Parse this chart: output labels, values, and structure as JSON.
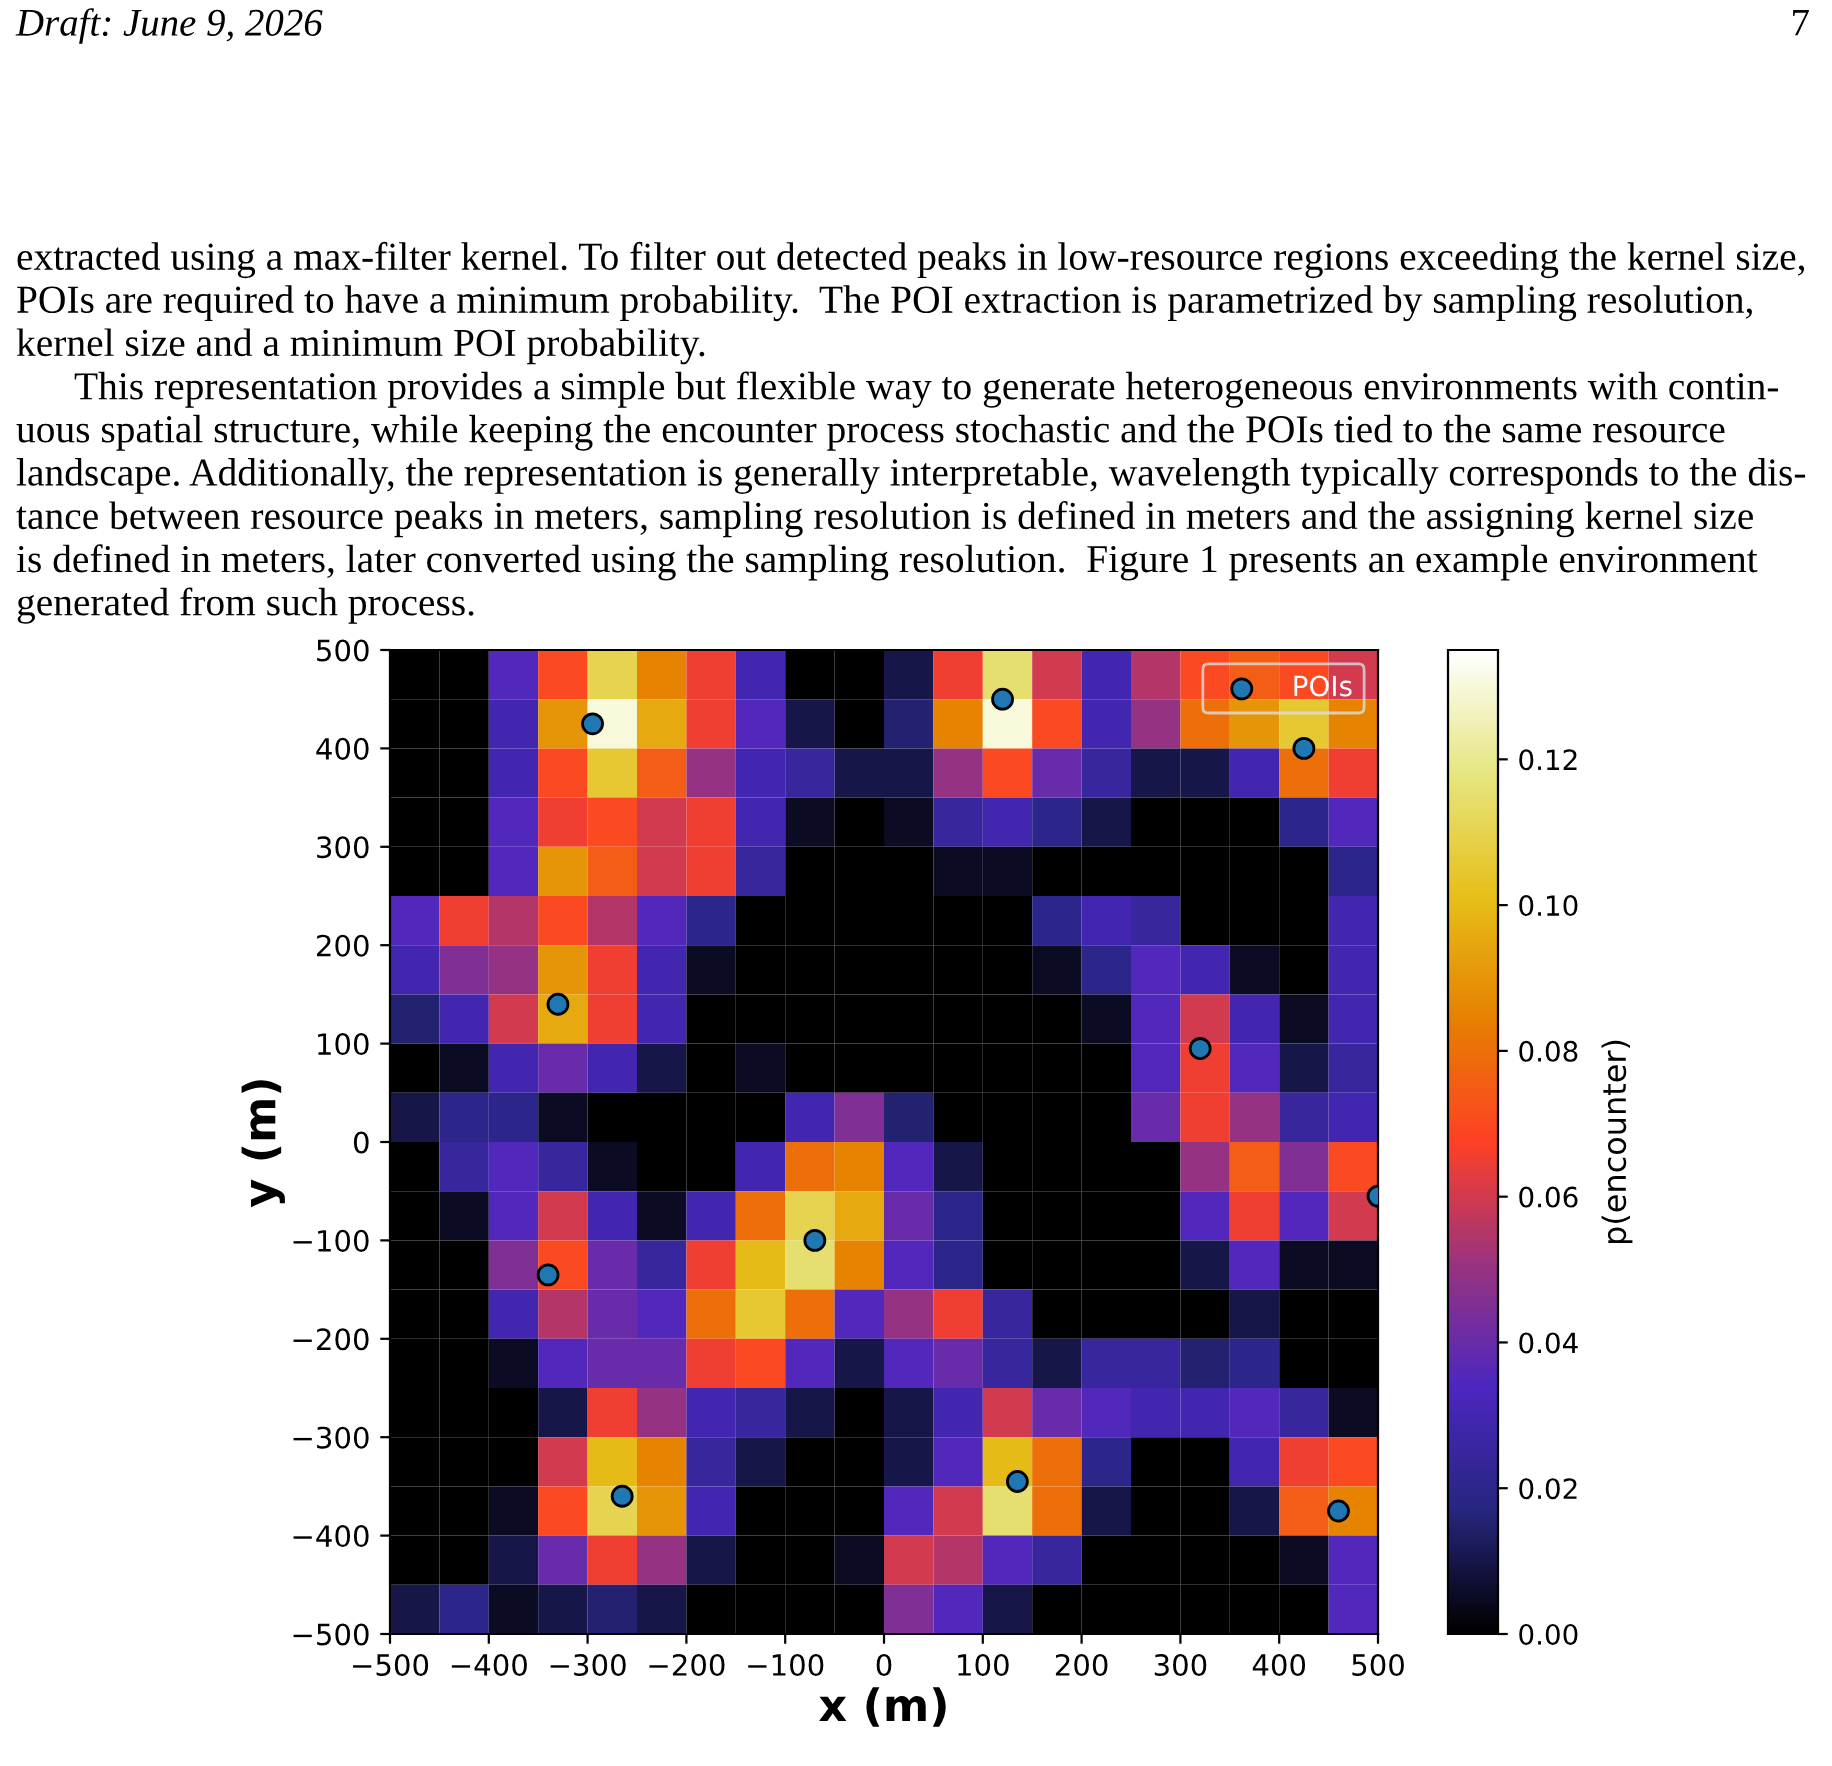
{
  "chart_data": {
    "type": "heatmap",
    "annotations": [
      "Draft: June 9, 2026",
      "7",
      "extracted using a max-filter kernel. To filter out detected peaks in low-resource regions exceeding the kernel size,\nPOIs are required to have a minimum probability.  The POI extraction is parametrized by sampling resolution,\nkernel size and a minimum POI probability.",
      "This representation provides a simple but flexible way to generate heterogeneous environments with contin-\nuous spatial structure, while keeping the encounter process stochastic and the POIs tied to the same resource\nlandscape. Additionally, the representation is generally interpretable, wavelength typically corresponds to the dis-\ntance between resource peaks in meters, sampling resolution is defined in meters and the assigning kernel size\nis defined in meters, later converted using the sampling resolution.  Figure 1 presents an example environment\ngenerated from such process."
    ],
    "xlabel": "x (m)",
    "ylabel": "y (m)",
    "clabel": "p(encounter)",
    "xlim": [
      -500,
      500
    ],
    "ylim": [
      -500,
      500
    ],
    "xticks": [
      {
        "value": -500,
        "label": "−500"
      },
      {
        "value": -400,
        "label": "−400"
      },
      {
        "value": -300,
        "label": "−300"
      },
      {
        "value": -200,
        "label": "−200"
      },
      {
        "value": -100,
        "label": "−100"
      },
      0,
      100,
      200,
      300,
      400,
      500
    ],
    "yticks": [
      {
        "value": -500,
        "label": "−500"
      },
      {
        "value": -400,
        "label": "−400"
      },
      {
        "value": -300,
        "label": "−300"
      },
      {
        "value": -200,
        "label": "−200"
      },
      {
        "value": -100,
        "label": "−100"
      },
      0,
      100,
      200,
      300,
      400,
      500
    ],
    "clim": [
      0,
      0.135
    ],
    "cticks": [
      {
        "value": 0,
        "label": "0.00"
      },
      0.02,
      0.04,
      0.06,
      0.08,
      {
        "value": 0.1,
        "label": "0.10"
      },
      0.12
    ],
    "cells": [
      [
        0,
        0,
        0.035,
        0.07,
        0.11,
        0.085,
        0.065,
        0.03,
        0,
        0,
        0.01,
        0.065,
        0.115,
        0.06,
        0.03,
        0.055,
        0.07,
        0.075,
        0.07,
        0.06
      ],
      [
        0,
        0,
        0.03,
        0.09,
        0.13,
        0.095,
        0.065,
        0.035,
        0.01,
        0,
        0.015,
        0.085,
        0.13,
        0.07,
        0.03,
        0.05,
        0.08,
        0.09,
        0.105,
        0.085
      ],
      [
        0,
        0,
        0.03,
        0.07,
        0.105,
        0.075,
        0.05,
        0.03,
        0.025,
        0.01,
        0.01,
        0.05,
        0.07,
        0.04,
        0.025,
        0.01,
        0.01,
        0.03,
        0.08,
        0.065
      ],
      [
        0,
        0,
        0.035,
        0.065,
        0.07,
        0.06,
        0.065,
        0.03,
        0.005,
        0,
        0.005,
        0.025,
        0.03,
        0.02,
        0.01,
        0,
        0,
        0,
        0.02,
        0.035
      ],
      [
        0,
        0,
        0.035,
        0.09,
        0.075,
        0.06,
        0.065,
        0.025,
        0,
        0,
        0,
        0.005,
        0.005,
        0,
        0,
        0,
        0,
        0,
        0,
        0.02
      ],
      [
        0.035,
        0.065,
        0.055,
        0.07,
        0.055,
        0.035,
        0.02,
        0,
        0,
        0,
        0,
        0,
        0,
        0.02,
        0.03,
        0.025,
        0,
        0,
        0,
        0.03
      ],
      [
        0.03,
        0.045,
        0.05,
        0.09,
        0.065,
        0.03,
        0.005,
        0,
        0,
        0,
        0,
        0,
        0,
        0.005,
        0.02,
        0.035,
        0.03,
        0.005,
        0,
        0.03
      ],
      [
        0.015,
        0.03,
        0.06,
        0.095,
        0.065,
        0.03,
        0,
        0,
        0,
        0,
        0,
        0,
        0,
        0,
        0.005,
        0.035,
        0.06,
        0.03,
        0.005,
        0.03
      ],
      [
        0,
        0.005,
        0.03,
        0.04,
        0.03,
        0.01,
        0,
        0.005,
        0,
        0,
        0,
        0,
        0,
        0,
        0,
        0.035,
        0.065,
        0.035,
        0.01,
        0.025
      ],
      [
        0.01,
        0.02,
        0.02,
        0.005,
        0,
        0,
        0,
        0,
        0.03,
        0.045,
        0.015,
        0,
        0,
        0,
        0,
        0.04,
        0.065,
        0.05,
        0.025,
        0.03
      ],
      [
        0,
        0.025,
        0.035,
        0.025,
        0.005,
        0,
        0,
        0.03,
        0.08,
        0.085,
        0.035,
        0.01,
        0,
        0,
        0,
        0,
        0.05,
        0.075,
        0.045,
        0.07
      ],
      [
        0,
        0.005,
        0.035,
        0.06,
        0.03,
        0.005,
        0.03,
        0.08,
        0.11,
        0.095,
        0.04,
        0.02,
        0,
        0,
        0,
        0,
        0.035,
        0.065,
        0.035,
        0.06
      ],
      [
        0,
        0,
        0.045,
        0.07,
        0.04,
        0.025,
        0.065,
        0.1,
        0.115,
        0.085,
        0.035,
        0.02,
        0,
        0,
        0,
        0,
        0.01,
        0.035,
        0.005,
        0.005
      ],
      [
        0,
        0,
        0.03,
        0.055,
        0.04,
        0.035,
        0.08,
        0.105,
        0.08,
        0.035,
        0.05,
        0.065,
        0.025,
        0,
        0,
        0,
        0,
        0.01,
        0,
        0
      ],
      [
        0,
        0,
        0.005,
        0.035,
        0.04,
        0.04,
        0.065,
        0.07,
        0.035,
        0.01,
        0.035,
        0.04,
        0.025,
        0.01,
        0.025,
        0.025,
        0.015,
        0.02,
        0,
        0
      ],
      [
        0,
        0,
        0,
        0.01,
        0.065,
        0.05,
        0.03,
        0.025,
        0.01,
        0,
        0.01,
        0.03,
        0.06,
        0.04,
        0.035,
        0.03,
        0.03,
        0.035,
        0.025,
        0.005
      ],
      [
        0,
        0,
        0,
        0.06,
        0.1,
        0.085,
        0.025,
        0.01,
        0,
        0,
        0.01,
        0.035,
        0.1,
        0.08,
        0.02,
        0,
        0,
        0.03,
        0.065,
        0.07
      ],
      [
        0,
        0,
        0.005,
        0.07,
        0.11,
        0.09,
        0.03,
        0,
        0,
        0,
        0.035,
        0.06,
        0.115,
        0.08,
        0.01,
        0,
        0,
        0.01,
        0.075,
        0.085
      ],
      [
        0,
        0,
        0.01,
        0.04,
        0.065,
        0.05,
        0.01,
        0,
        0,
        0.005,
        0.06,
        0.055,
        0.035,
        0.025,
        0,
        0,
        0,
        0,
        0.005,
        0.035
      ],
      [
        0.01,
        0.02,
        0.005,
        0.01,
        0.015,
        0.01,
        0,
        0,
        0,
        0,
        0.045,
        0.035,
        0.01,
        0,
        0,
        0,
        0,
        0,
        0,
        0.035
      ]
    ],
    "series": [
      {
        "type": "scatter",
        "name": "POIs",
        "color": "#1f77b4",
        "x": [
          -295,
          120,
          425,
          -330,
          320,
          500,
          -340,
          -70,
          -265,
          135,
          460
        ],
        "values": [
          425,
          450,
          400,
          140,
          95,
          -55,
          -135,
          -100,
          -360,
          -345,
          -375
        ]
      }
    ],
    "legend": "top right",
    "marker": "circle"
  }
}
